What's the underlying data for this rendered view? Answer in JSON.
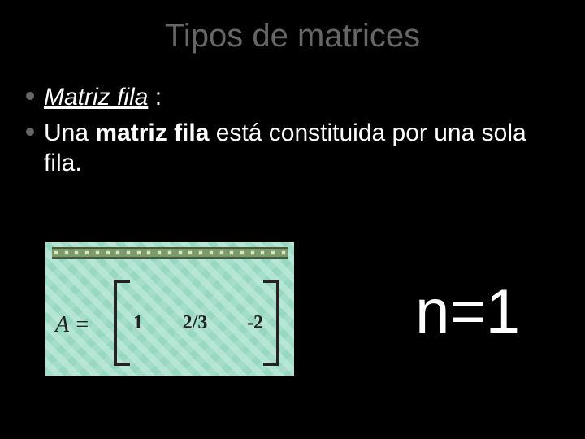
{
  "slide": {
    "title": "Tipos de matrices",
    "bullets": [
      {
        "prefix": "Matriz fila",
        "suffix": " :"
      },
      {
        "pre": "Una ",
        "bold": "matriz fila",
        "post": " está constituida por una sola fila."
      }
    ]
  },
  "matrix_figure": {
    "background_color": "#b6e6d6",
    "film_strip_color": "#7a9a6a",
    "label": "A =",
    "values": [
      "1",
      "2/3",
      "-2"
    ],
    "bracket_color": "#222222",
    "text_color": "#222222"
  },
  "equation": {
    "text": "n=1",
    "color": "#ffffff",
    "fontsize": 76
  },
  "colors": {
    "background": "#000000",
    "title": "#666666",
    "body_text": "#ffffff",
    "bullet": "#666666"
  }
}
